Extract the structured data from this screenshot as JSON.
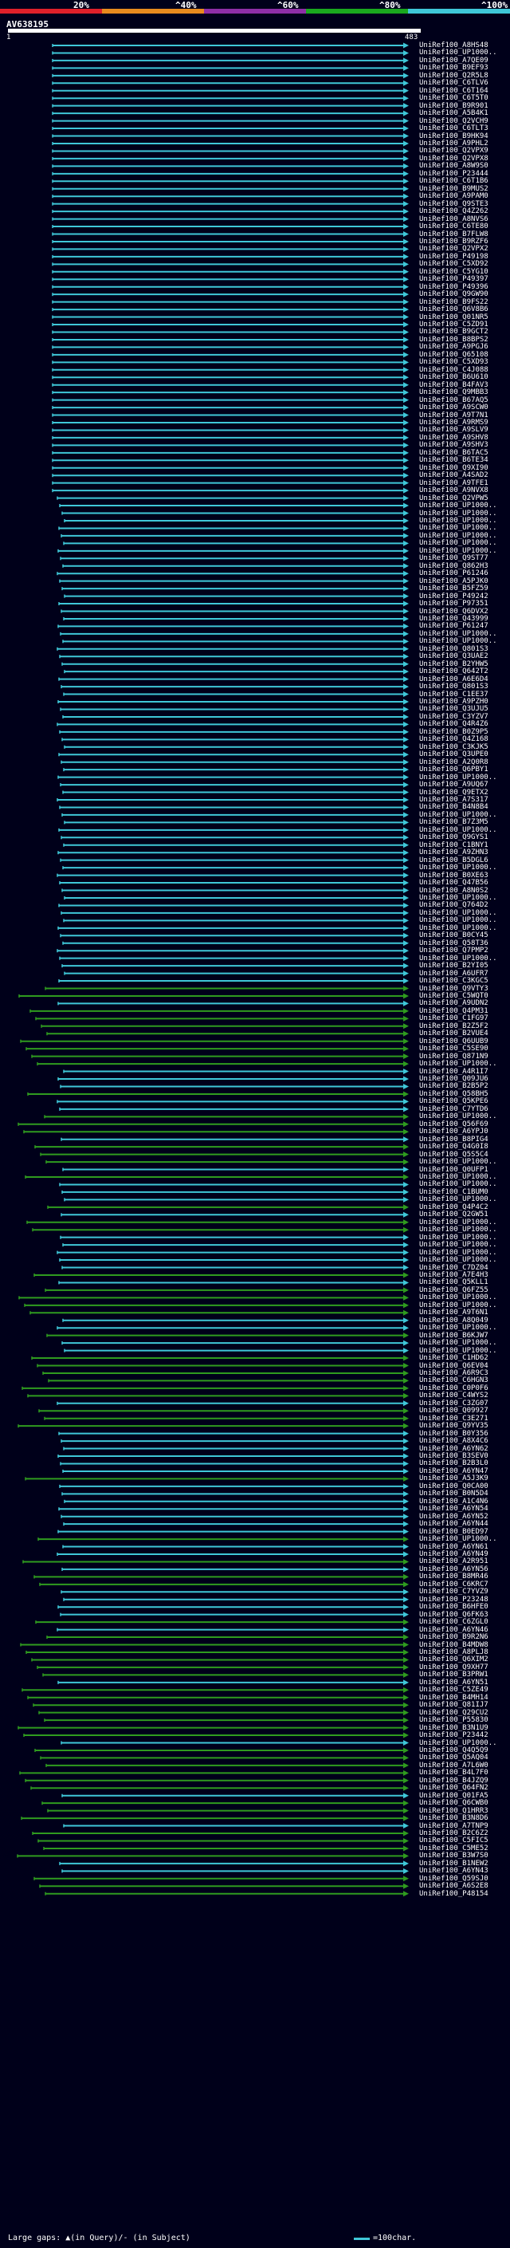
{
  "scale": {
    "labels": [
      {
        "text": "20%",
        "pct": 20
      },
      {
        "text": "^40%",
        "pct": 40
      },
      {
        "text": "^60%",
        "pct": 60
      },
      {
        "text": "^80%",
        "pct": 80
      },
      {
        "text": "^100%",
        "pct": 100
      }
    ],
    "colors": [
      "#e0202a",
      "#e88a1e",
      "#8e2ea6",
      "#1aa81e",
      "#3fc7d8"
    ]
  },
  "query": {
    "id": "AV638195",
    "start": "1",
    "end": "483",
    "length": 483
  },
  "hits": [
    {
      "label": "UniRef100_A8HS48",
      "color": "cyan"
    },
    {
      "label": "UniRef100_UP1000..",
      "color": "cyan"
    },
    {
      "label": "UniRef100_A7QE09",
      "color": "cyan"
    },
    {
      "label": "UniRef100_B9EF93",
      "color": "cyan"
    },
    {
      "label": "UniRef100_Q2R5L8",
      "color": "cyan"
    },
    {
      "label": "UniRef100_C6TLV6",
      "color": "cyan"
    },
    {
      "label": "UniRef100_C6T164",
      "color": "cyan"
    },
    {
      "label": "UniRef100_C6T5T0",
      "color": "cyan"
    },
    {
      "label": "UniRef100_B9R901",
      "color": "cyan"
    },
    {
      "label": "UniRef100_A5B4K1",
      "color": "cyan"
    },
    {
      "label": "UniRef100_Q2VCH9",
      "color": "cyan"
    },
    {
      "label": "UniRef100_C6TLT3",
      "color": "cyan"
    },
    {
      "label": "UniRef100_B9HK94",
      "color": "cyan"
    },
    {
      "label": "UniRef100_A9PHL2",
      "color": "cyan"
    },
    {
      "label": "UniRef100_Q2VPX9",
      "color": "cyan"
    },
    {
      "label": "UniRef100_Q2VPX8",
      "color": "cyan"
    },
    {
      "label": "UniRef100_A8W9S0",
      "color": "cyan"
    },
    {
      "label": "UniRef100_P23444",
      "color": "cyan"
    },
    {
      "label": "UniRef100_C6T1B6",
      "color": "cyan"
    },
    {
      "label": "UniRef100_B9MUS2",
      "color": "cyan"
    },
    {
      "label": "UniRef100_A9PAM0",
      "color": "cyan"
    },
    {
      "label": "UniRef100_Q9STE3",
      "color": "cyan"
    },
    {
      "label": "UniRef100_Q4Z262",
      "color": "cyan"
    },
    {
      "label": "UniRef100_A8NVS6",
      "color": "cyan"
    },
    {
      "label": "UniRef100_C6TE80",
      "color": "cyan"
    },
    {
      "label": "UniRef100_B7FLW8",
      "color": "cyan"
    },
    {
      "label": "UniRef100_B9RZF6",
      "color": "cyan"
    },
    {
      "label": "UniRef100_Q2VPX2",
      "color": "cyan"
    },
    {
      "label": "UniRef100_P49198",
      "color": "cyan"
    },
    {
      "label": "UniRef100_C5XD92",
      "color": "cyan"
    },
    {
      "label": "UniRef100_C5YG10",
      "color": "cyan"
    },
    {
      "label": "UniRef100_P49397",
      "color": "cyan"
    },
    {
      "label": "UniRef100_P49396",
      "color": "cyan"
    },
    {
      "label": "UniRef100_Q9GW90",
      "color": "cyan"
    },
    {
      "label": "UniRef100_B9FS22",
      "color": "cyan"
    },
    {
      "label": "UniRef100_Q6V8B6",
      "color": "cyan"
    },
    {
      "label": "UniRef100_Q01NR5",
      "color": "cyan"
    },
    {
      "label": "UniRef100_C5ZD91",
      "color": "cyan"
    },
    {
      "label": "UniRef100_B9GCT2",
      "color": "cyan"
    },
    {
      "label": "UniRef100_B8BPS2",
      "color": "cyan"
    },
    {
      "label": "UniRef100_A9PGJ6",
      "color": "cyan"
    },
    {
      "label": "UniRef100_Q65108",
      "color": "cyan"
    },
    {
      "label": "UniRef100_C5XD93",
      "color": "cyan"
    },
    {
      "label": "UniRef100_C4J088",
      "color": "cyan"
    },
    {
      "label": "UniRef100_B6U610",
      "color": "cyan"
    },
    {
      "label": "UniRef100_B4FAV3",
      "color": "cyan"
    },
    {
      "label": "UniRef100_Q9MBB3",
      "color": "cyan"
    },
    {
      "label": "UniRef100_B67AQ5",
      "color": "cyan"
    },
    {
      "label": "UniRef100_A9SCW0",
      "color": "cyan"
    },
    {
      "label": "UniRef100_A9T7N1",
      "color": "cyan"
    },
    {
      "label": "UniRef100_A9RMS9",
      "color": "cyan"
    },
    {
      "label": "UniRef100_A9SLV9",
      "color": "cyan"
    },
    {
      "label": "UniRef100_A9SHV8",
      "color": "cyan"
    },
    {
      "label": "UniRef100_A9SHV3",
      "color": "cyan"
    },
    {
      "label": "UniRef100_B6TAC5",
      "color": "cyan"
    },
    {
      "label": "UniRef100_B6TE34",
      "color": "cyan"
    },
    {
      "label": "UniRef100_Q9XI90",
      "color": "cyan"
    },
    {
      "label": "UniRef100_A4SAD2",
      "color": "cyan"
    },
    {
      "label": "UniRef100_A9TFE1",
      "color": "cyan"
    },
    {
      "label": "UniRef100_A9NVX8",
      "color": "cyan"
    },
    {
      "label": "UniRef100_Q2VPW5",
      "color": "cyan"
    },
    {
      "label": "UniRef100_UP1000..",
      "color": "cyan"
    },
    {
      "label": "UniRef100_UP1000..",
      "color": "cyan"
    },
    {
      "label": "UniRef100_UP1000..",
      "color": "cyan"
    },
    {
      "label": "UniRef100_UP1000..",
      "color": "cyan"
    },
    {
      "label": "UniRef100_UP1000..",
      "color": "cyan"
    },
    {
      "label": "UniRef100_UP1000..",
      "color": "cyan"
    },
    {
      "label": "UniRef100_UP1000..",
      "color": "cyan"
    },
    {
      "label": "UniRef100_Q9ST77",
      "color": "cyan"
    },
    {
      "label": "UniRef100_Q862H3",
      "color": "cyan"
    },
    {
      "label": "UniRef100_P61246",
      "color": "cyan"
    },
    {
      "label": "UniRef100_A5PJK0",
      "color": "cyan"
    },
    {
      "label": "UniRef100_B5FZ59",
      "color": "cyan"
    },
    {
      "label": "UniRef100_P49242",
      "color": "cyan"
    },
    {
      "label": "UniRef100_P97351",
      "color": "cyan"
    },
    {
      "label": "UniRef100_Q6DVX2",
      "color": "cyan"
    },
    {
      "label": "UniRef100_Q43999",
      "color": "cyan"
    },
    {
      "label": "UniRef100_P61247",
      "color": "cyan"
    },
    {
      "label": "UniRef100_UP1000..",
      "color": "cyan"
    },
    {
      "label": "UniRef100_UP1000..",
      "color": "cyan"
    },
    {
      "label": "UniRef100_Q801S3",
      "color": "cyan"
    },
    {
      "label": "UniRef100_Q3UAE2",
      "color": "cyan"
    },
    {
      "label": "UniRef100_B2YHW5",
      "color": "cyan"
    },
    {
      "label": "UniRef100_Q642T2",
      "color": "cyan"
    },
    {
      "label": "UniRef100_A6E6D4",
      "color": "cyan"
    },
    {
      "label": "UniRef100_Q801S3",
      "color": "cyan"
    },
    {
      "label": "UniRef100_C1EE37",
      "color": "cyan"
    },
    {
      "label": "UniRef100_A9PZH0",
      "color": "cyan"
    },
    {
      "label": "UniRef100_Q3UJU5",
      "color": "cyan"
    },
    {
      "label": "UniRef100_C3YZV7",
      "color": "cyan"
    },
    {
      "label": "UniRef100_Q4R4Z6",
      "color": "cyan"
    },
    {
      "label": "UniRef100_B0Z9P5",
      "color": "cyan"
    },
    {
      "label": "UniRef100_Q4Z168",
      "color": "cyan"
    },
    {
      "label": "UniRef100_C3KJK5",
      "color": "cyan"
    },
    {
      "label": "UniRef100_Q3UPE0",
      "color": "cyan"
    },
    {
      "label": "UniRef100_A2Q0R8",
      "color": "cyan"
    },
    {
      "label": "UniRef100_Q6PBY1",
      "color": "cyan"
    },
    {
      "label": "UniRef100_UP1000..",
      "color": "cyan"
    },
    {
      "label": "UniRef100_A9UQ67",
      "color": "cyan"
    },
    {
      "label": "UniRef100_Q9ETX2",
      "color": "cyan"
    },
    {
      "label": "UniRef100_A7S317",
      "color": "cyan"
    },
    {
      "label": "UniRef100_B4N8B4",
      "color": "cyan"
    },
    {
      "label": "UniRef100_UP1000..",
      "color": "cyan"
    },
    {
      "label": "UniRef100_B7Z3M5",
      "color": "cyan"
    },
    {
      "label": "UniRef100_UP1000..",
      "color": "cyan"
    },
    {
      "label": "UniRef100_Q9GYS1",
      "color": "cyan"
    },
    {
      "label": "UniRef100_C1BNY1",
      "color": "cyan"
    },
    {
      "label": "UniRef100_A9ZHN3",
      "color": "cyan"
    },
    {
      "label": "UniRef100_B5DGL6",
      "color": "cyan"
    },
    {
      "label": "UniRef100_UP1000..",
      "color": "cyan"
    },
    {
      "label": "UniRef100_B0XE63",
      "color": "cyan"
    },
    {
      "label": "UniRef100_Q47B56",
      "color": "cyan"
    },
    {
      "label": "UniRef100_A8N0S2",
      "color": "cyan"
    },
    {
      "label": "UniRef100_UP1000..",
      "color": "cyan"
    },
    {
      "label": "UniRef100_Q764D2",
      "color": "cyan"
    },
    {
      "label": "UniRef100_UP1000..",
      "color": "cyan"
    },
    {
      "label": "UniRef100_UP1000..",
      "color": "cyan"
    },
    {
      "label": "UniRef100_UP1000..",
      "color": "cyan"
    },
    {
      "label": "UniRef100_B0CY45",
      "color": "cyan"
    },
    {
      "label": "UniRef100_Q58T36",
      "color": "cyan"
    },
    {
      "label": "UniRef100_Q7PMP2",
      "color": "cyan"
    },
    {
      "label": "UniRef100_UP1000..",
      "color": "cyan"
    },
    {
      "label": "UniRef100_B2YI05",
      "color": "cyan"
    },
    {
      "label": "UniRef100_A6UFR7",
      "color": "cyan"
    },
    {
      "label": "UniRef100_C3KGC5",
      "color": "cyan"
    },
    {
      "label": "UniRef100_Q9VTY3",
      "color": "green"
    },
    {
      "label": "UniRef100_C5WQT0",
      "color": "green"
    },
    {
      "label": "UniRef100_A9UDN2",
      "color": "cyan"
    },
    {
      "label": "UniRef100_Q4PM31",
      "color": "green"
    },
    {
      "label": "UniRef100_C1FG97",
      "color": "green"
    },
    {
      "label": "UniRef100_B2Z5F2",
      "color": "green"
    },
    {
      "label": "UniRef100_B2VUE4",
      "color": "green"
    },
    {
      "label": "UniRef100_Q6UUB9",
      "color": "green"
    },
    {
      "label": "UniRef100_C5SE90",
      "color": "green"
    },
    {
      "label": "UniRef100_Q871N9",
      "color": "green"
    },
    {
      "label": "UniRef100_UP1000..",
      "color": "green"
    },
    {
      "label": "UniRef100_A4R1I7",
      "color": "cyan"
    },
    {
      "label": "UniRef100_Q09JU6",
      "color": "cyan"
    },
    {
      "label": "UniRef100_B2B5P2",
      "color": "cyan"
    },
    {
      "label": "UniRef100_Q58BH5",
      "color": "green"
    },
    {
      "label": "UniRef100_Q5KPE6",
      "color": "cyan"
    },
    {
      "label": "UniRef100_C7YTD6",
      "color": "cyan"
    },
    {
      "label": "UniRef100_UP1000..",
      "color": "green"
    },
    {
      "label": "UniRef100_Q56F69",
      "color": "green"
    },
    {
      "label": "UniRef100_A6YPJ0",
      "color": "green"
    },
    {
      "label": "UniRef100_B8PIG4",
      "color": "cyan"
    },
    {
      "label": "UniRef100_Q4G0I8",
      "color": "green"
    },
    {
      "label": "UniRef100_Q5S5C4",
      "color": "green"
    },
    {
      "label": "UniRef100_UP1000..",
      "color": "green"
    },
    {
      "label": "UniRef100_Q0UFP1",
      "color": "cyan"
    },
    {
      "label": "UniRef100_UP1000..",
      "color": "green"
    },
    {
      "label": "UniRef100_UP1000..",
      "color": "cyan"
    },
    {
      "label": "UniRef100_C1BUM0",
      "color": "cyan"
    },
    {
      "label": "UniRef100_UP1000..",
      "color": "cyan"
    },
    {
      "label": "UniRef100_Q4P4C2",
      "color": "green"
    },
    {
      "label": "UniRef100_Q2GW51",
      "color": "cyan"
    },
    {
      "label": "UniRef100_UP1000..",
      "color": "green"
    },
    {
      "label": "UniRef100_UP1000..",
      "color": "green"
    },
    {
      "label": "UniRef100_UP1000..",
      "color": "cyan"
    },
    {
      "label": "UniRef100_UP1000..",
      "color": "cyan"
    },
    {
      "label": "UniRef100_UP1000..",
      "color": "cyan"
    },
    {
      "label": "UniRef100_UP1000..",
      "color": "cyan"
    },
    {
      "label": "UniRef100_C7DZ04",
      "color": "cyan"
    },
    {
      "label": "UniRef100_A7E4H3",
      "color": "green"
    },
    {
      "label": "UniRef100_Q5KLL1",
      "color": "cyan"
    },
    {
      "label": "UniRef100_Q6FZ55",
      "color": "green"
    },
    {
      "label": "UniRef100_UP1000..",
      "color": "green"
    },
    {
      "label": "UniRef100_UP1000..",
      "color": "green"
    },
    {
      "label": "UniRef100_A9T6N1",
      "color": "green"
    },
    {
      "label": "UniRef100_A8Q049",
      "color": "cyan"
    },
    {
      "label": "UniRef100_UP1000..",
      "color": "cyan"
    },
    {
      "label": "UniRef100_B6KJW7",
      "color": "green"
    },
    {
      "label": "UniRef100_UP1000..",
      "color": "cyan"
    },
    {
      "label": "UniRef100_UP1000..",
      "color": "cyan"
    },
    {
      "label": "UniRef100_C1HD62",
      "color": "green"
    },
    {
      "label": "UniRef100_Q6EV04",
      "color": "green"
    },
    {
      "label": "UniRef100_A6R9C3",
      "color": "green"
    },
    {
      "label": "UniRef100_C6HGN3",
      "color": "green"
    },
    {
      "label": "UniRef100_C0P0F6",
      "color": "green"
    },
    {
      "label": "UniRef100_C4WYS2",
      "color": "green"
    },
    {
      "label": "UniRef100_C3ZG07",
      "color": "cyan"
    },
    {
      "label": "UniRef100_Q09927",
      "color": "green"
    },
    {
      "label": "UniRef100_C3E271",
      "color": "green"
    },
    {
      "label": "UniRef100_Q9YV35",
      "color": "green"
    },
    {
      "label": "UniRef100_B0Y356",
      "color": "cyan"
    },
    {
      "label": "UniRef100_A8X4C6",
      "color": "cyan"
    },
    {
      "label": "UniRef100_A6YN62",
      "color": "cyan"
    },
    {
      "label": "UniRef100_B3SEV0",
      "color": "cyan"
    },
    {
      "label": "UniRef100_B2B3L0",
      "color": "cyan"
    },
    {
      "label": "UniRef100_A6YN47",
      "color": "cyan"
    },
    {
      "label": "UniRef100_A5J3K9",
      "color": "green"
    },
    {
      "label": "UniRef100_Q0CA00",
      "color": "cyan"
    },
    {
      "label": "UniRef100_B0N5D4",
      "color": "cyan"
    },
    {
      "label": "UniRef100_A1C4N6",
      "color": "cyan"
    },
    {
      "label": "UniRef100_A6YN54",
      "color": "cyan"
    },
    {
      "label": "UniRef100_A6YN52",
      "color": "cyan"
    },
    {
      "label": "UniRef100_A6YN44",
      "color": "cyan"
    },
    {
      "label": "UniRef100_B0ED97",
      "color": "cyan"
    },
    {
      "label": "UniRef100_UP1000..",
      "color": "green"
    },
    {
      "label": "UniRef100_A6YN61",
      "color": "cyan"
    },
    {
      "label": "UniRef100_A6YN49",
      "color": "cyan"
    },
    {
      "label": "UniRef100_A2R951",
      "color": "green"
    },
    {
      "label": "UniRef100_A6YN56",
      "color": "cyan"
    },
    {
      "label": "UniRef100_B8MR46",
      "color": "green"
    },
    {
      "label": "UniRef100_C6KRC7",
      "color": "green"
    },
    {
      "label": "UniRef100_C7YVZ9",
      "color": "cyan"
    },
    {
      "label": "UniRef100_P23248",
      "color": "cyan"
    },
    {
      "label": "UniRef100_B6HFE0",
      "color": "cyan"
    },
    {
      "label": "UniRef100_Q6FK63",
      "color": "cyan"
    },
    {
      "label": "UniRef100_C6ZGL0",
      "color": "green"
    },
    {
      "label": "UniRef100_A6YN46",
      "color": "cyan"
    },
    {
      "label": "UniRef100_B9R2N6",
      "color": "green"
    },
    {
      "label": "UniRef100_B4MDW8",
      "color": "green"
    },
    {
      "label": "UniRef100_A8PLJ8",
      "color": "green"
    },
    {
      "label": "UniRef100_Q6XIM2",
      "color": "green"
    },
    {
      "label": "UniRef100_Q9XH77",
      "color": "green"
    },
    {
      "label": "UniRef100_B3PRW1",
      "color": "green"
    },
    {
      "label": "UniRef100_A6YN51",
      "color": "cyan"
    },
    {
      "label": "UniRef100_C5ZE49",
      "color": "green"
    },
    {
      "label": "UniRef100_B4MH14",
      "color": "green"
    },
    {
      "label": "UniRef100_Q81IJ7",
      "color": "green"
    },
    {
      "label": "UniRef100_Q29CU2",
      "color": "green"
    },
    {
      "label": "UniRef100_P55830",
      "color": "green"
    },
    {
      "label": "UniRef100_B3N1U9",
      "color": "green"
    },
    {
      "label": "UniRef100_P23442",
      "color": "green"
    },
    {
      "label": "UniRef100_UP1000..",
      "color": "cyan"
    },
    {
      "label": "UniRef100_Q4Q5Q9",
      "color": "green"
    },
    {
      "label": "UniRef100_Q5AQ04",
      "color": "green"
    },
    {
      "label": "UniRef100_A7L6W0",
      "color": "green"
    },
    {
      "label": "UniRef100_B4L7F0",
      "color": "green"
    },
    {
      "label": "UniRef100_B4JZQ9",
      "color": "green"
    },
    {
      "label": "UniRef100_Q64FN2",
      "color": "green"
    },
    {
      "label": "UniRef100_Q01FA5",
      "color": "cyan"
    },
    {
      "label": "UniRef100_Q6CWB0",
      "color": "green"
    },
    {
      "label": "UniRef100_Q1HRR3",
      "color": "green"
    },
    {
      "label": "UniRef100_B3N8D6",
      "color": "green"
    },
    {
      "label": "UniRef100_A7TNP9",
      "color": "cyan"
    },
    {
      "label": "UniRef100_B2C6Z2",
      "color": "green"
    },
    {
      "label": "UniRef100_C5FIC5",
      "color": "green"
    },
    {
      "label": "UniRef100_C5ME52",
      "color": "green"
    },
    {
      "label": "UniRef100_B3W7S0",
      "color": "green"
    },
    {
      "label": "UniRef100_B1NEW2",
      "color": "cyan"
    },
    {
      "label": "UniRef100_A6YN43",
      "color": "cyan"
    },
    {
      "label": "UniRef100_Q59SJ0",
      "color": "green"
    },
    {
      "label": "UniRef100_A6S2E8",
      "color": "green"
    },
    {
      "label": "UniRef100_P48154",
      "color": "green"
    }
  ],
  "legend": {
    "text": "Large gaps: ▲(in Query)/- (in Subject)",
    "scale_text": "=100char."
  }
}
